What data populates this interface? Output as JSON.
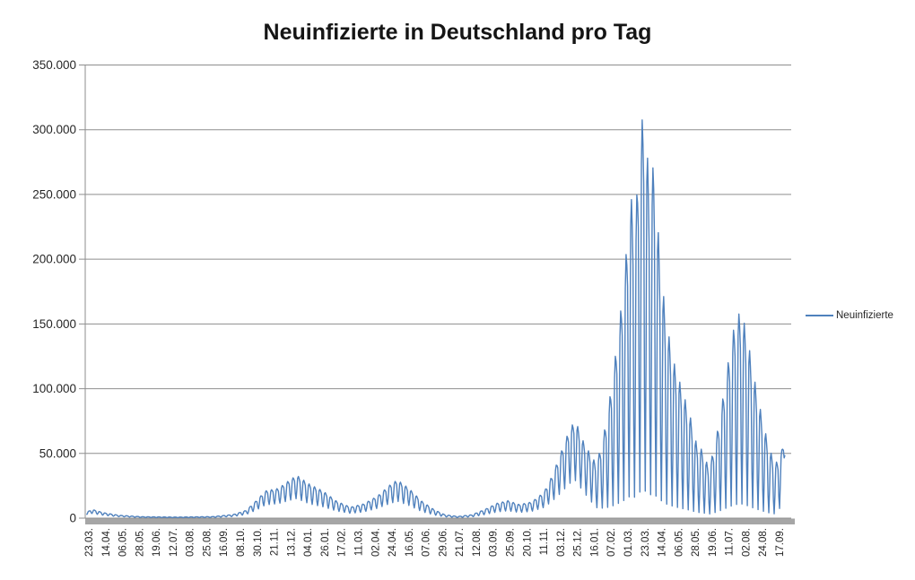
{
  "chart": {
    "title": "Neuinfizierte in Deutschland pro Tag",
    "legend": {
      "label": "Neuinfizierte",
      "line_color": "#4F81BD",
      "position": "right"
    }
  },
  "chart_data": {
    "type": "line",
    "title": "Neuinfizierte in Deutschland pro Tag",
    "series_name": "Neuinfizierte",
    "description_of_series": "Daily new COVID-19 infections in Germany, daily values with strong weekly reporting oscillation (weekend dips), from 23.03.2020 to 17.09.2022",
    "line_color": "#4F81BD",
    "grid_color": "#8e8e8e",
    "axis_bar_color": "#a6a6a6",
    "ylim": [
      0,
      350000
    ],
    "y_max_observed_peak": 318000,
    "grid": "horizontal",
    "legend_position": "right",
    "y_ticks": {
      "values": [
        0,
        50000,
        100000,
        150000,
        200000,
        250000,
        300000,
        350000
      ],
      "labels": [
        "0",
        "50.000",
        "100.000",
        "150.000",
        "200.000",
        "250.000",
        "300.000",
        "350.000"
      ]
    },
    "x_tick_labels": [
      "23.03.",
      "14.04.",
      "06.05.",
      "28.05.",
      "19.06.",
      "12.07.",
      "03.08.",
      "25.08.",
      "16.09.",
      "08.10.",
      "30.10.",
      "21.11.",
      "13.12.",
      "04.01.",
      "26.01.",
      "17.02.",
      "11.03.",
      "02.04.",
      "24.04.",
      "16.05.",
      "07.06.",
      "29.06.",
      "21.07.",
      "12.08.",
      "03.09.",
      "25.09.",
      "20.10.",
      "11.11.",
      "03.12.",
      "25.12.",
      "16.01.",
      "07.02.",
      "01.03.",
      "23.03.",
      "14.04.",
      "06.05.",
      "28.05.",
      "19.06.",
      "11.07.",
      "02.08.",
      "24.08.",
      "17.09."
    ],
    "days_total": 910,
    "weekly_pattern": [
      0.06,
      0.4,
      0.9,
      1.0,
      0.93,
      0.82,
      0.3
    ],
    "envelope_columns": [
      "day_index",
      "weekly_peak_value",
      "weekly_trough_value"
    ],
    "envelope_points": [
      [
        0,
        4500,
        2500
      ],
      [
        7,
        6800,
        3400
      ],
      [
        22,
        4200,
        2100
      ],
      [
        42,
        2200,
        1100
      ],
      [
        72,
        1100,
        500
      ],
      [
        118,
        800,
        350
      ],
      [
        165,
        1200,
        500
      ],
      [
        191,
        2800,
        1200
      ],
      [
        208,
        6000,
        2600
      ],
      [
        222,
        14000,
        6000
      ],
      [
        233,
        21000,
        9500
      ],
      [
        250,
        23000,
        10500
      ],
      [
        266,
        30000,
        13000
      ],
      [
        274,
        33000,
        14000
      ],
      [
        291,
        26000,
        10000
      ],
      [
        308,
        21000,
        8000
      ],
      [
        326,
        13000,
        5000
      ],
      [
        344,
        8500,
        3400
      ],
      [
        361,
        11000,
        4400
      ],
      [
        379,
        17000,
        7000
      ],
      [
        396,
        26000,
        10500
      ],
      [
        405,
        29500,
        12000
      ],
      [
        420,
        23000,
        9000
      ],
      [
        437,
        13000,
        4500
      ],
      [
        453,
        6500,
        2200
      ],
      [
        467,
        2600,
        900
      ],
      [
        484,
        1300,
        450
      ],
      [
        502,
        2600,
        900
      ],
      [
        520,
        7000,
        2600
      ],
      [
        535,
        11500,
        4400
      ],
      [
        549,
        13500,
        5200
      ],
      [
        564,
        10500,
        4000
      ],
      [
        580,
        12500,
        4800
      ],
      [
        596,
        20000,
        7500
      ],
      [
        607,
        33000,
        12000
      ],
      [
        619,
        52000,
        18000
      ],
      [
        629,
        68000,
        24000
      ],
      [
        637,
        76000,
        26000
      ],
      [
        645,
        62000,
        20000
      ],
      [
        654,
        52000,
        13000
      ],
      [
        664,
        42000,
        6000
      ],
      [
        672,
        58000,
        4500
      ],
      [
        680,
        85000,
        3500
      ],
      [
        688,
        120000,
        3000
      ],
      [
        697,
        165000,
        2800
      ],
      [
        704,
        210000,
        2600
      ],
      [
        709,
        250000,
        2500
      ],
      [
        715,
        226000,
        2500
      ],
      [
        721,
        297000,
        2500
      ],
      [
        727,
        318000,
        2500
      ],
      [
        733,
        258000,
        2500
      ],
      [
        739,
        273000,
        2500
      ],
      [
        747,
        203000,
        2200
      ],
      [
        755,
        152000,
        2000
      ],
      [
        766,
        119000,
        1800
      ],
      [
        776,
        99000,
        1600
      ],
      [
        786,
        80000,
        1400
      ],
      [
        795,
        57000,
        1200
      ],
      [
        803,
        52000,
        1000
      ],
      [
        811,
        38000,
        900
      ],
      [
        820,
        60000,
        1000
      ],
      [
        829,
        92000,
        1100
      ],
      [
        838,
        128000,
        1300
      ],
      [
        845,
        152000,
        1400
      ],
      [
        853,
        161000,
        1500
      ],
      [
        861,
        140000,
        1300
      ],
      [
        870,
        108000,
        1200
      ],
      [
        880,
        78000,
        1000
      ],
      [
        889,
        55000,
        900
      ],
      [
        897,
        42000,
        800
      ],
      [
        903,
        46000,
        5000
      ],
      [
        907,
        55000,
        30000
      ],
      [
        910,
        58000,
        48000
      ]
    ]
  }
}
